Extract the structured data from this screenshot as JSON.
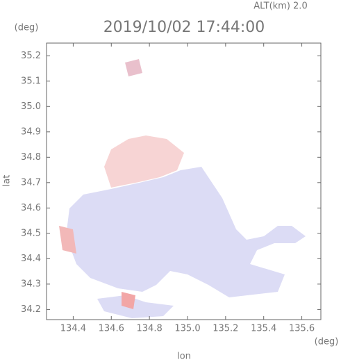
{
  "chart_data": {
    "type": "map",
    "title": "2019/10/02 17:44:00",
    "subtitle": "ALT(km) 2.0",
    "y_unit": "(deg)",
    "x_unit": "(deg)",
    "xlabel": "lon",
    "ylabel": "lat",
    "xlim": [
      134.26,
      135.7
    ],
    "xticks": [
      134.4,
      134.6,
      134.8,
      {
        "value": 135,
        "label": "135.0"
      },
      135.2,
      135.4,
      135.6
    ],
    "ylim": [
      34.16,
      35.25
    ],
    "yticks": [
      34.2,
      34.3,
      34.4,
      34.5,
      34.6,
      34.7,
      34.8,
      34.9,
      {
        "value": 35,
        "label": "35.0"
      },
      35.1,
      35.2
    ]
  }
}
